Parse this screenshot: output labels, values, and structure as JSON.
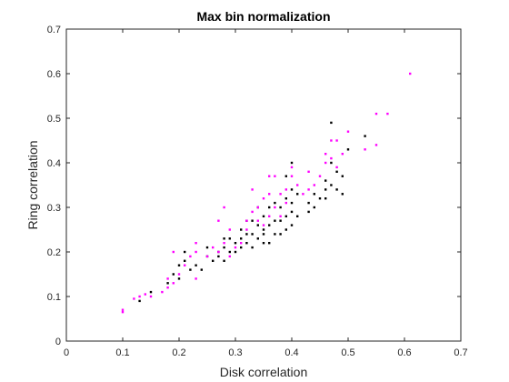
{
  "chart_data": {
    "type": "scatter",
    "title": "Max bin normalization",
    "xlabel": "Disk correlation",
    "ylabel": "Ring correlation",
    "xlim": [
      0,
      0.7
    ],
    "ylim": [
      0,
      0.7
    ],
    "xticks": [
      "0",
      "0.1",
      "0.2",
      "0.3",
      "0.4",
      "0.5",
      "0.6",
      "0.7"
    ],
    "yticks": [
      "0",
      "0.1",
      "0.2",
      "0.3",
      "0.4",
      "0.5",
      "0.6",
      "0.7"
    ],
    "grid": false,
    "box": true,
    "series": [
      {
        "color": "#000000",
        "points": [
          [
            0.13,
            0.09
          ],
          [
            0.15,
            0.11
          ],
          [
            0.18,
            0.13
          ],
          [
            0.19,
            0.15
          ],
          [
            0.2,
            0.14
          ],
          [
            0.2,
            0.17
          ],
          [
            0.21,
            0.18
          ],
          [
            0.21,
            0.2
          ],
          [
            0.22,
            0.16
          ],
          [
            0.23,
            0.17
          ],
          [
            0.24,
            0.16
          ],
          [
            0.25,
            0.19
          ],
          [
            0.25,
            0.21
          ],
          [
            0.26,
            0.18
          ],
          [
            0.27,
            0.19
          ],
          [
            0.27,
            0.2
          ],
          [
            0.28,
            0.18
          ],
          [
            0.28,
            0.21
          ],
          [
            0.29,
            0.2
          ],
          [
            0.29,
            0.23
          ],
          [
            0.3,
            0.2
          ],
          [
            0.3,
            0.22
          ],
          [
            0.31,
            0.23
          ],
          [
            0.31,
            0.21
          ],
          [
            0.32,
            0.22
          ],
          [
            0.32,
            0.24
          ],
          [
            0.32,
            0.27
          ],
          [
            0.33,
            0.21
          ],
          [
            0.33,
            0.24
          ],
          [
            0.33,
            0.27
          ],
          [
            0.34,
            0.23
          ],
          [
            0.34,
            0.26
          ],
          [
            0.34,
            0.3
          ],
          [
            0.35,
            0.22
          ],
          [
            0.35,
            0.24
          ],
          [
            0.35,
            0.28
          ],
          [
            0.36,
            0.22
          ],
          [
            0.36,
            0.26
          ],
          [
            0.36,
            0.3
          ],
          [
            0.37,
            0.24
          ],
          [
            0.37,
            0.27
          ],
          [
            0.37,
            0.31
          ],
          [
            0.38,
            0.24
          ],
          [
            0.38,
            0.27
          ],
          [
            0.38,
            0.3
          ],
          [
            0.39,
            0.25
          ],
          [
            0.39,
            0.28
          ],
          [
            0.39,
            0.32
          ],
          [
            0.39,
            0.37
          ],
          [
            0.4,
            0.26
          ],
          [
            0.4,
            0.29
          ],
          [
            0.4,
            0.31
          ],
          [
            0.4,
            0.34
          ],
          [
            0.4,
            0.4
          ],
          [
            0.41,
            0.28
          ],
          [
            0.41,
            0.33
          ],
          [
            0.43,
            0.29
          ],
          [
            0.43,
            0.31
          ],
          [
            0.44,
            0.3
          ],
          [
            0.44,
            0.33
          ],
          [
            0.45,
            0.32
          ],
          [
            0.46,
            0.32
          ],
          [
            0.46,
            0.34
          ],
          [
            0.46,
            0.36
          ],
          [
            0.47,
            0.35
          ],
          [
            0.47,
            0.4
          ],
          [
            0.47,
            0.49
          ],
          [
            0.48,
            0.38
          ],
          [
            0.48,
            0.34
          ],
          [
            0.49,
            0.33
          ],
          [
            0.49,
            0.37
          ],
          [
            0.5,
            0.43
          ],
          [
            0.53,
            0.46
          ],
          [
            0.28,
            0.23
          ],
          [
            0.31,
            0.25
          ],
          [
            0.35,
            0.25
          ]
        ]
      },
      {
        "color": "#ff00ff",
        "points": [
          [
            0.1,
            0.07
          ],
          [
            0.1,
            0.065
          ],
          [
            0.12,
            0.095
          ],
          [
            0.13,
            0.1
          ],
          [
            0.14,
            0.105
          ],
          [
            0.15,
            0.1
          ],
          [
            0.17,
            0.11
          ],
          [
            0.18,
            0.12
          ],
          [
            0.18,
            0.14
          ],
          [
            0.19,
            0.13
          ],
          [
            0.19,
            0.2
          ],
          [
            0.2,
            0.15
          ],
          [
            0.21,
            0.17
          ],
          [
            0.22,
            0.19
          ],
          [
            0.23,
            0.14
          ],
          [
            0.23,
            0.22
          ],
          [
            0.23,
            0.2
          ],
          [
            0.25,
            0.19
          ],
          [
            0.26,
            0.21
          ],
          [
            0.27,
            0.2
          ],
          [
            0.27,
            0.27
          ],
          [
            0.28,
            0.22
          ],
          [
            0.28,
            0.3
          ],
          [
            0.29,
            0.19
          ],
          [
            0.29,
            0.25
          ],
          [
            0.3,
            0.21
          ],
          [
            0.31,
            0.22
          ],
          [
            0.32,
            0.27
          ],
          [
            0.32,
            0.25
          ],
          [
            0.33,
            0.29
          ],
          [
            0.33,
            0.34
          ],
          [
            0.34,
            0.27
          ],
          [
            0.34,
            0.3
          ],
          [
            0.35,
            0.26
          ],
          [
            0.35,
            0.32
          ],
          [
            0.36,
            0.28
          ],
          [
            0.36,
            0.33
          ],
          [
            0.37,
            0.37
          ],
          [
            0.37,
            0.3
          ],
          [
            0.38,
            0.28
          ],
          [
            0.38,
            0.33
          ],
          [
            0.39,
            0.31
          ],
          [
            0.39,
            0.34
          ],
          [
            0.4,
            0.37
          ],
          [
            0.4,
            0.39
          ],
          [
            0.41,
            0.35
          ],
          [
            0.42,
            0.33
          ],
          [
            0.43,
            0.38
          ],
          [
            0.43,
            0.34
          ],
          [
            0.44,
            0.35
          ],
          [
            0.45,
            0.37
          ],
          [
            0.46,
            0.4
          ],
          [
            0.46,
            0.42
          ],
          [
            0.47,
            0.45
          ],
          [
            0.47,
            0.41
          ],
          [
            0.48,
            0.45
          ],
          [
            0.48,
            0.39
          ],
          [
            0.49,
            0.42
          ],
          [
            0.5,
            0.47
          ],
          [
            0.53,
            0.43
          ],
          [
            0.55,
            0.44
          ],
          [
            0.55,
            0.51
          ],
          [
            0.57,
            0.51
          ],
          [
            0.61,
            0.6
          ],
          [
            0.36,
            0.37
          ]
        ]
      }
    ]
  }
}
